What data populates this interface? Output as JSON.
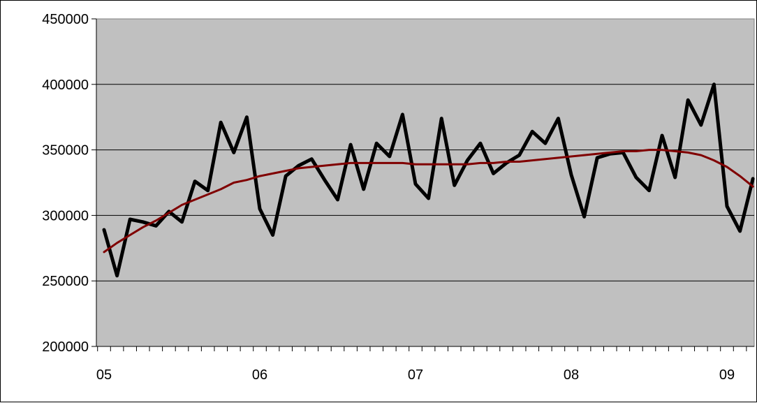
{
  "chart_data": {
    "type": "line",
    "title": "",
    "xlabel": "",
    "ylabel": "",
    "x_tick_labels": [
      "05",
      "06",
      "07",
      "08",
      "09"
    ],
    "y_tick_labels": [
      "200000",
      "250000",
      "300000",
      "350000",
      "400000",
      "450000"
    ],
    "ylim": [
      200000,
      450000
    ],
    "yticks": [
      200000,
      250000,
      300000,
      350000,
      400000,
      450000
    ],
    "grid": "horizontal",
    "legend": "none",
    "x_start": 2005.0,
    "x_step": 0.0833333,
    "series": [
      {
        "color": "#000000",
        "values": [
          289000,
          254000,
          297000,
          295000,
          292000,
          303000,
          295000,
          326000,
          319000,
          371000,
          348000,
          375000,
          305000,
          285000,
          330000,
          338000,
          343000,
          327000,
          312000,
          354000,
          320000,
          355000,
          345000,
          377000,
          324000,
          313000,
          374000,
          323000,
          342000,
          355000,
          332000,
          340000,
          346000,
          364000,
          355000,
          374000,
          331000,
          299000,
          344000,
          347000,
          348000,
          329000,
          319000,
          361000,
          329000,
          388000,
          369000,
          400000,
          307000,
          288000,
          328000
        ]
      },
      {
        "color": "#800000",
        "values": [
          272000,
          279000,
          285000,
          291000,
          296000,
          302000,
          308000,
          312000,
          316000,
          320000,
          325000,
          327000,
          330000,
          332000,
          334000,
          336000,
          337000,
          338000,
          339000,
          340000,
          340000,
          340000,
          340000,
          340000,
          339000,
          339000,
          339000,
          339000,
          339000,
          340000,
          340000,
          341000,
          341000,
          342000,
          343000,
          344000,
          345000,
          346000,
          347000,
          348000,
          349000,
          349000,
          350000,
          350000,
          349000,
          348000,
          346000,
          342000,
          337000,
          330000,
          322000
        ]
      }
    ]
  }
}
